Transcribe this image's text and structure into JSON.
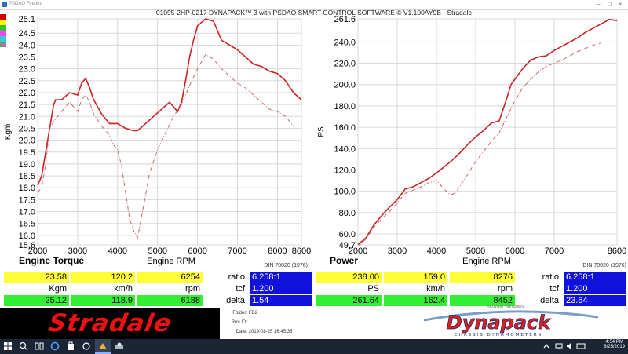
{
  "window": {
    "title": "PSDAQ Firebird",
    "main_title": "01095-2HP-0217 DYNAPACK™ 3 with PSDAQ SMART CONTROL SOFTWARE © V1.100AY9B - Stradale"
  },
  "legend_colors": [
    "#d00000",
    "#ffff00",
    "#30c030",
    "#ff40ff",
    "#30d0d0",
    "#888888"
  ],
  "torque_panel": {
    "title": "Engine Torque",
    "xlabel": "Engine RPM",
    "ylabel": "Kgm",
    "din": "DIN 70020 (1976)",
    "readout_row1": {
      "value": "23.58",
      "speed": "120.2",
      "rpm": "6254"
    },
    "units": {
      "value": "Kgm",
      "speed": "km/h",
      "rpm": "rpm"
    },
    "readout_row2": {
      "value": "25.12",
      "speed": "118.9",
      "rpm": "6188"
    },
    "ratio_label": "ratio",
    "ratio_value": "6.258:1",
    "tcf_label": "tcf",
    "tcf_value": "1.200",
    "delta_label": "delta",
    "delta_value": "1.54"
  },
  "power_panel": {
    "title": "Power",
    "xlabel": "Engine RPM",
    "ylabel": "PS",
    "din": "DIN 70020 (1976)",
    "readout_row1": {
      "value": "238.00",
      "speed": "159.0",
      "rpm": "8276"
    },
    "units": {
      "value": "PS",
      "speed": "km/h",
      "rpm": "rpm"
    },
    "readout_row2": {
      "value": "261.64",
      "speed": "162.4",
      "rpm": "8452"
    },
    "ratio_label": "ratio",
    "ratio_value": "6.258:1",
    "tcf_label": "tcf",
    "tcf_value": "1.200",
    "delta_label": "delta",
    "delta_value": "23.64"
  },
  "chart_data": [
    {
      "type": "line",
      "xlabel": "Engine RPM",
      "ylabel": "Kgm",
      "xlim": [
        2000,
        8600
      ],
      "ylim": [
        15.6,
        25.1
      ],
      "x_ticks": [
        "2000",
        "3000",
        "4000",
        "5000",
        "6000",
        "7000",
        "8000",
        "8600"
      ],
      "y_ticks": [
        "25.1",
        "24.5",
        "24.0",
        "23.5",
        "23.0",
        "22.5",
        "22.0",
        "21.5",
        "21.0",
        "20.5",
        "20.0",
        "19.5",
        "19.0",
        "18.5",
        "18.0",
        "17.5",
        "17.0",
        "16.5",
        "16.0",
        "15.6"
      ],
      "grid": true,
      "series": [
        {
          "color": "#cc2222",
          "dash": false,
          "x": [
            2000,
            2100,
            2200,
            2300,
            2400,
            2450,
            2600,
            2800,
            3000,
            3100,
            3200,
            3300,
            3400,
            3600,
            3800,
            4000,
            4200,
            4400,
            4500,
            4700,
            4900,
            5100,
            5300,
            5400,
            5500,
            5600,
            5700,
            5800,
            5900,
            6000,
            6200,
            6400,
            6600,
            6800,
            7000,
            7200,
            7400,
            7600,
            7800,
            8000,
            8200,
            8400,
            8600
          ],
          "y": [
            18.1,
            18.5,
            19.5,
            20.5,
            21.5,
            21.7,
            21.7,
            22.0,
            21.9,
            22.4,
            22.6,
            22.2,
            21.7,
            21.1,
            20.7,
            20.7,
            20.5,
            20.4,
            20.4,
            20.7,
            21.0,
            21.3,
            21.6,
            21.4,
            21.2,
            21.6,
            22.5,
            23.5,
            24.2,
            24.8,
            25.1,
            25.0,
            24.2,
            24.0,
            23.8,
            23.5,
            23.2,
            23.1,
            22.9,
            22.8,
            22.5,
            22.0,
            21.7
          ]
        },
        {
          "color": "#cc6666",
          "dash": true,
          "x": [
            2000,
            2100,
            2200,
            2300,
            2400,
            2600,
            2800,
            3000,
            3100,
            3200,
            3300,
            3400,
            3600,
            3800,
            3900,
            4000,
            4100,
            4200,
            4300,
            4400,
            4500,
            4600,
            4700,
            4800,
            5000,
            5200,
            5400,
            5600,
            5800,
            6000,
            6200,
            6400,
            6600,
            6800,
            7000,
            7200,
            7400,
            7600,
            7800,
            8000,
            8200,
            8400
          ],
          "y": [
            17.8,
            18.0,
            19.0,
            20.5,
            20.8,
            21.2,
            21.6,
            21.2,
            21.7,
            21.9,
            21.6,
            21.1,
            20.6,
            20.2,
            19.8,
            19.6,
            18.9,
            17.8,
            16.7,
            16.2,
            15.9,
            16.8,
            17.7,
            18.6,
            19.6,
            20.3,
            21.0,
            21.5,
            22.3,
            23.0,
            23.6,
            23.4,
            23.0,
            22.7,
            22.4,
            22.2,
            21.9,
            21.6,
            21.3,
            21.2,
            21.0,
            20.6
          ]
        }
      ]
    },
    {
      "type": "line",
      "xlabel": "Engine RPM",
      "ylabel": "PS",
      "xlim": [
        2000,
        8600
      ],
      "ylim": [
        49.7,
        261.6
      ],
      "x_ticks": [
        "2000",
        "3000",
        "4000",
        "5000",
        "6000",
        "7000",
        "8600"
      ],
      "y_ticks": [
        "261.6",
        "240.0",
        "220.0",
        "200.0",
        "180.0",
        "160.0",
        "140.0",
        "120.0",
        "100.0",
        "80.0",
        "60.0",
        "49.7"
      ],
      "grid": true,
      "series": [
        {
          "color": "#cc2222",
          "dash": false,
          "x": [
            2000,
            2200,
            2400,
            2600,
            2800,
            3000,
            3200,
            3400,
            3600,
            3800,
            4000,
            4200,
            4400,
            4600,
            4800,
            5000,
            5200,
            5400,
            5600,
            5800,
            5900,
            6000,
            6200,
            6400,
            6600,
            6800,
            7000,
            7200,
            7400,
            7600,
            7800,
            8000,
            8200,
            8400,
            8600
          ],
          "y": [
            50,
            56,
            68,
            77,
            85,
            92,
            102,
            104,
            108,
            112,
            117,
            123,
            129,
            136,
            144,
            151,
            157,
            164,
            166,
            188,
            200,
            205,
            215,
            223,
            226,
            227,
            232,
            236,
            240,
            244,
            249,
            253,
            257,
            261,
            260
          ]
        },
        {
          "color": "#cc6666",
          "dash": true,
          "x": [
            2000,
            2200,
            2400,
            2600,
            2800,
            3000,
            3200,
            3400,
            3600,
            3800,
            4000,
            4100,
            4200,
            4300,
            4400,
            4500,
            4600,
            4800,
            5000,
            5200,
            5400,
            5600,
            5800,
            6000,
            6200,
            6400,
            6600,
            6800,
            7000,
            7200,
            7400,
            7600,
            7800,
            8000,
            8200
          ],
          "y": [
            48,
            55,
            66,
            74,
            81,
            89,
            98,
            101,
            104,
            108,
            110,
            106,
            102,
            98,
            97,
            99,
            105,
            116,
            128,
            137,
            147,
            155,
            170,
            185,
            197,
            205,
            212,
            217,
            220,
            223,
            227,
            231,
            234,
            237,
            239
          ]
        }
      ]
    }
  ],
  "footer": {
    "brand_left": "Stradale",
    "folder_label": "Folder:",
    "folder_value": "FD2",
    "run_label": "Run ID:",
    "run_value": "",
    "date_label": "Date:",
    "date_value": "2019-08-25 16:45:35",
    "brand_right": "Dynapack",
    "brand_right_sub": "CHASSIS DYNAMOMETERS",
    "activate_text": "Activate Windows"
  },
  "taskbar": {
    "time": "4:54 PM",
    "date": "8/25/2019"
  }
}
